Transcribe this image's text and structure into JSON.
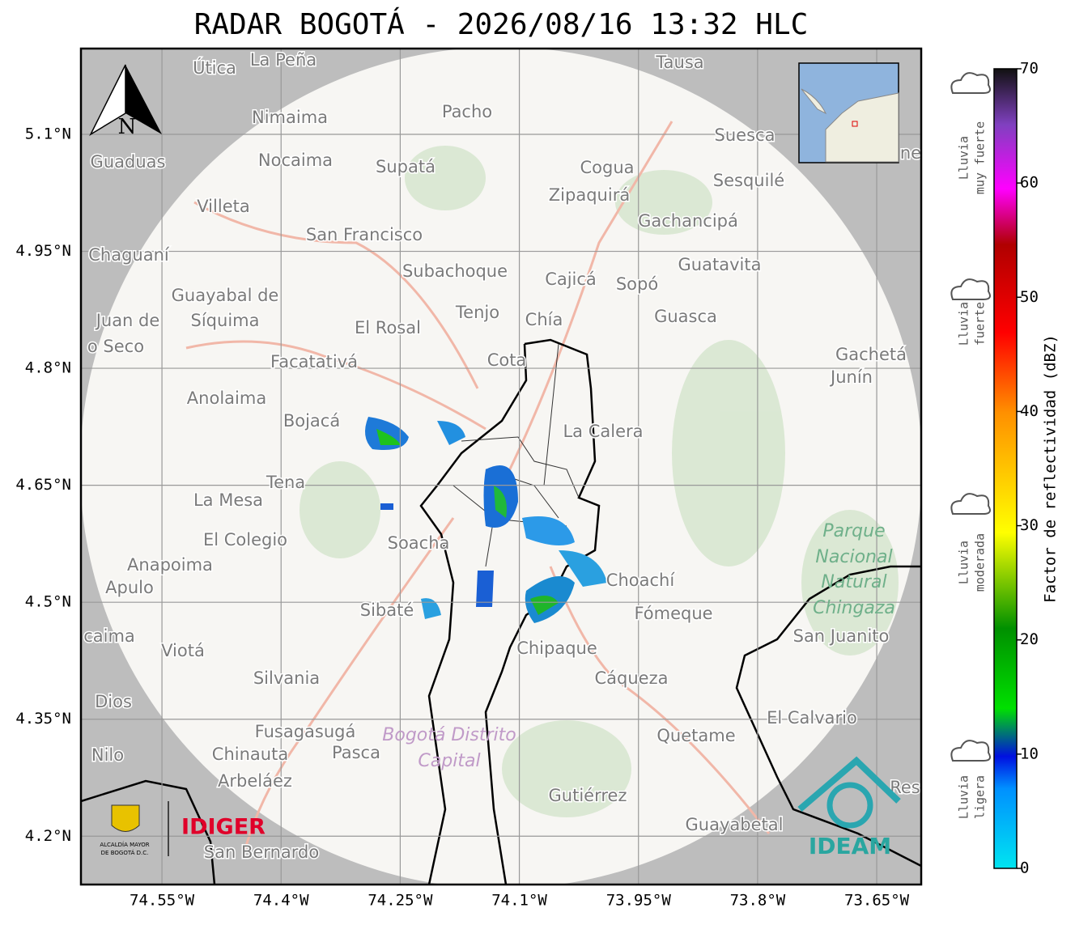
{
  "title": "RADAR BOGOTÁ - 2026/08/16 13:32 HLC",
  "map": {
    "latlim": [
      4.138,
      5.21
    ],
    "lonlim": [
      -74.652,
      -73.594
    ],
    "lat_ticks": [
      {
        "value": 5.1,
        "label": "5.1°N"
      },
      {
        "value": 4.95,
        "label": "4.95°N"
      },
      {
        "value": 4.8,
        "label": "4.8°N"
      },
      {
        "value": 4.65,
        "label": "4.65°N"
      },
      {
        "value": 4.5,
        "label": "4.5°N"
      },
      {
        "value": 4.35,
        "label": "4.35°N"
      },
      {
        "value": 4.2,
        "label": "4.2°N"
      }
    ],
    "lon_ticks": [
      {
        "value": -74.55,
        "label": "74.55°W"
      },
      {
        "value": -74.4,
        "label": "74.4°W"
      },
      {
        "value": -74.25,
        "label": "74.25°W"
      },
      {
        "value": -74.1,
        "label": "74.1°W"
      },
      {
        "value": -73.95,
        "label": "73.95°W"
      },
      {
        "value": -73.8,
        "label": "73.8°W"
      },
      {
        "value": -73.65,
        "label": "73.65°W"
      }
    ],
    "north": "N",
    "places": [
      "La Peña",
      "Útica",
      "Tausa",
      "Pacho",
      "Nimaima",
      "Suesca",
      "Guaduas",
      "Nocaima",
      "Supatá",
      "Cogua",
      "Sesquilé",
      "Zipaquirá",
      "Villeta",
      "Gachancipá",
      "San Francisco",
      "Chaguaní",
      "Guatavita",
      "Subachoque",
      "Cajicá",
      "Sopó",
      "Guayabal de",
      "Síquima",
      "Juan de",
      "o Seco",
      "Tenjo",
      "Chía",
      "Guasca",
      "El Rosal",
      "Facatativá",
      "Cota",
      "Gachetá",
      "Junín",
      "Anolaima",
      "Bojacá",
      "La Calera",
      "Tena",
      "La Mesa",
      "El Colegio",
      "Soacha",
      "Anapoima",
      "Choachí",
      "Apulo",
      "Sibaté",
      "Fómeque",
      "San Juanito",
      "caima",
      "Viotá",
      "Chipaque",
      "Silvania",
      "Cáqueza",
      "Dios",
      "El Calvario",
      "Fusagasugá",
      "Quetame",
      "Nilo",
      "Chinauta",
      "Pasca",
      "Arbeláez",
      "Gutiérrez",
      "Res",
      "Guayabetal",
      "San Bernardo",
      "ne"
    ],
    "park": [
      "Parque",
      "Nacional",
      "Natural",
      "Chingaza"
    ],
    "district": [
      "Bogotá Distrito",
      "Capital"
    ]
  },
  "logos": {
    "alcaldia": [
      "ALCALDÍA MAYOR",
      "DE BOGOTÁ D.C."
    ],
    "idiger": "IDIGER",
    "ideam": "IDEAM"
  },
  "colorbar": {
    "label": "Factor de reflectividad (dBZ)",
    "range": [
      0,
      70
    ],
    "ticks": [
      0,
      10,
      20,
      30,
      40,
      50,
      60,
      70
    ]
  },
  "rain_levels": [
    [
      "Lluvia",
      "muy fuerte"
    ],
    [
      "Lluvia",
      "fuerte"
    ],
    [
      "Lluvia",
      "moderada"
    ],
    [
      "Lluvia",
      "ligera"
    ]
  ]
}
